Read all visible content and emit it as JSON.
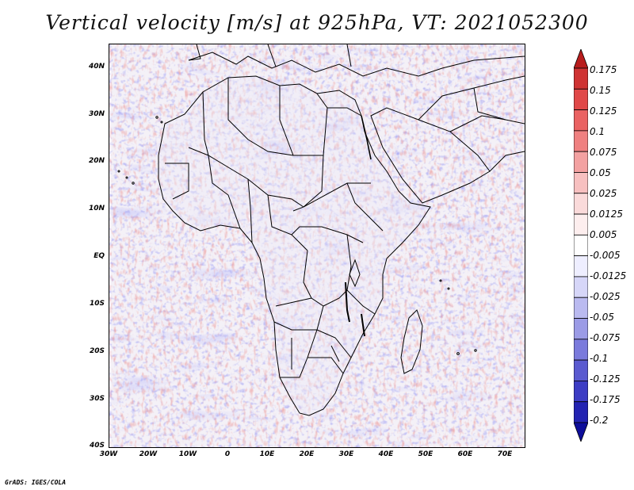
{
  "title": "Vertical velocity [m/s] at 925hPa, VT: 2021052300",
  "map": {
    "variable": "Vertical velocity",
    "units": "m/s",
    "level": "925hPa",
    "valid_time": "2021052300",
    "region": "Africa",
    "lat_range": [
      -40,
      45
    ],
    "lon_range": [
      -30,
      75
    ],
    "lat_ticks": [
      "40N",
      "30N",
      "20N",
      "10N",
      "EQ",
      "10S",
      "20S",
      "30S",
      "40S"
    ],
    "lon_ticks": [
      "30W",
      "20W",
      "10W",
      "0",
      "10E",
      "20E",
      "30E",
      "40E",
      "50E",
      "60E",
      "70E"
    ]
  },
  "colorbar": {
    "levels": [
      "0.175",
      "0.15",
      "0.125",
      "0.1",
      "0.075",
      "0.05",
      "0.025",
      "0.0125",
      "0.005",
      "-0.005",
      "-0.0125",
      "-0.025",
      "-0.05",
      "-0.075",
      "-0.1",
      "-0.125",
      "-0.175",
      "-0.2"
    ],
    "colors": [
      "#b81d1d",
      "#cf3333",
      "#e04848",
      "#ea6262",
      "#ef8080",
      "#f3a1a1",
      "#f7c0c0",
      "#fadada",
      "#fdeeee",
      "#ffffff",
      "#eeeeff",
      "#d6d6f8",
      "#babaf0",
      "#9b9be6",
      "#7a7adc",
      "#5a5ad0",
      "#3c3cc4",
      "#2323b2",
      "#0e0e9a"
    ]
  },
  "credit": "GrADS: IGES/COLA"
}
